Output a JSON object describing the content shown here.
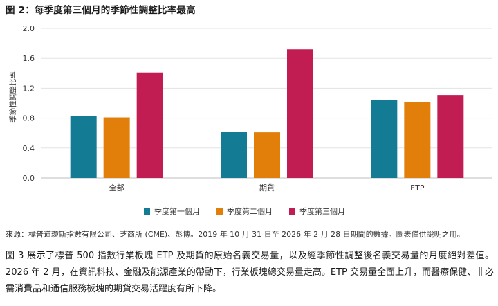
{
  "figure_title": "圖 2：每季度第三個月的季節性調整比率最高",
  "chart_data": {
    "type": "bar",
    "title": "",
    "categories": [
      "全部",
      "期貨",
      "ETP"
    ],
    "series": [
      {
        "name": "季度第一個月",
        "values": [
          0.83,
          0.62,
          1.04
        ],
        "color": "#137b93"
      },
      {
        "name": "季度第二個月",
        "values": [
          0.81,
          0.61,
          1.01
        ],
        "color": "#e27f0b"
      },
      {
        "name": "季度第三個月",
        "values": [
          1.41,
          1.72,
          1.11
        ],
        "color": "#c21d52"
      }
    ],
    "ylabel": "季節性調整比率",
    "xlabel": "",
    "ylim": [
      0,
      2.0
    ],
    "yticks": [
      "0.0",
      "0.4",
      "0.8",
      "1.2",
      "1.6",
      "2.0"
    ],
    "grid": "horizontal",
    "legend_position": "bottom"
  },
  "source_note": "來源：標普道瓊斯指數有限公司、芝商所 (CME)、彭博。2019 年 10 月 31 日至 2026 年 2 月 28 日期間的數據。圖表僅供說明之用。",
  "body_text": "圖 3 展示了標普 500 指數行業板塊 ETP 及期貨的原始名義交易量，以及經季節性調整後名義交易量的月度絕對差值。2026 年 2 月，在資訊科技、金融及能源產業的帶動下，行業板塊總交易量走高。ETP 交易量全面上升，而醫療保健、非必需消費品和通信服務板塊的期貨交易活躍度有所下降。"
}
